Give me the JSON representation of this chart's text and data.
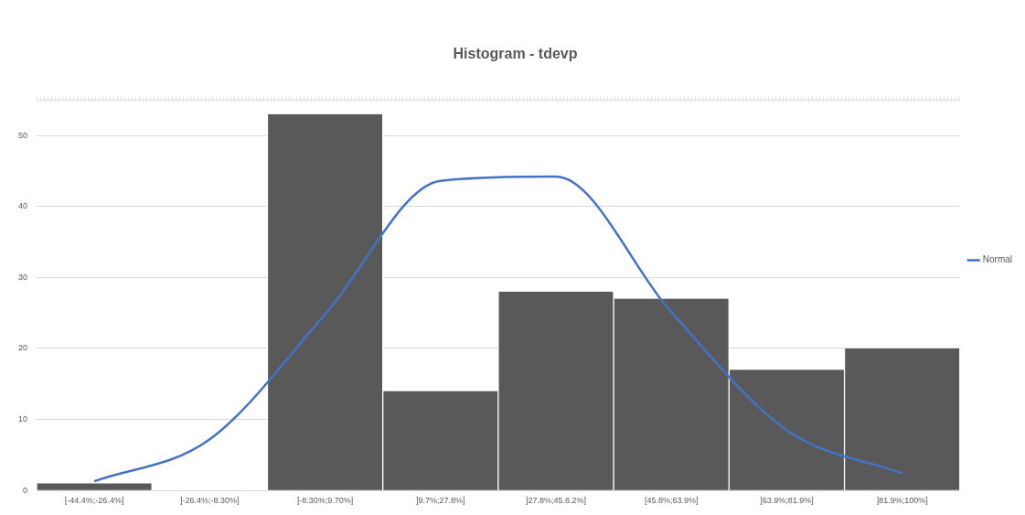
{
  "chart_data": {
    "type": "bar",
    "title": "Histogram - tdevp",
    "categories": [
      "[-44.4%;-26.4%]",
      "]-26.4%;-8.30%]",
      "]-8.30%;9.70%]",
      "]9.7%;27.8%]",
      "]27.8%;45.8.2%]",
      "[45.8%;63.9%]",
      "]63.9%;81.9%]",
      "]81.9%;100%]"
    ],
    "series": [
      {
        "color": "#595959",
        "values": [
          1,
          0,
          53,
          14,
          28,
          27,
          17,
          20
        ]
      },
      {
        "name": "Normal",
        "type": "line",
        "color": "#4472c4",
        "values": [
          1.3,
          7.2,
          24.8,
          43.6,
          44.2,
          25.1,
          8.5,
          2.4
        ]
      }
    ],
    "ylim": [
      0,
      55
    ],
    "yticks": [
      0,
      10,
      20,
      30,
      40,
      50
    ],
    "grid": "y",
    "legend": "right",
    "marker": "none"
  }
}
